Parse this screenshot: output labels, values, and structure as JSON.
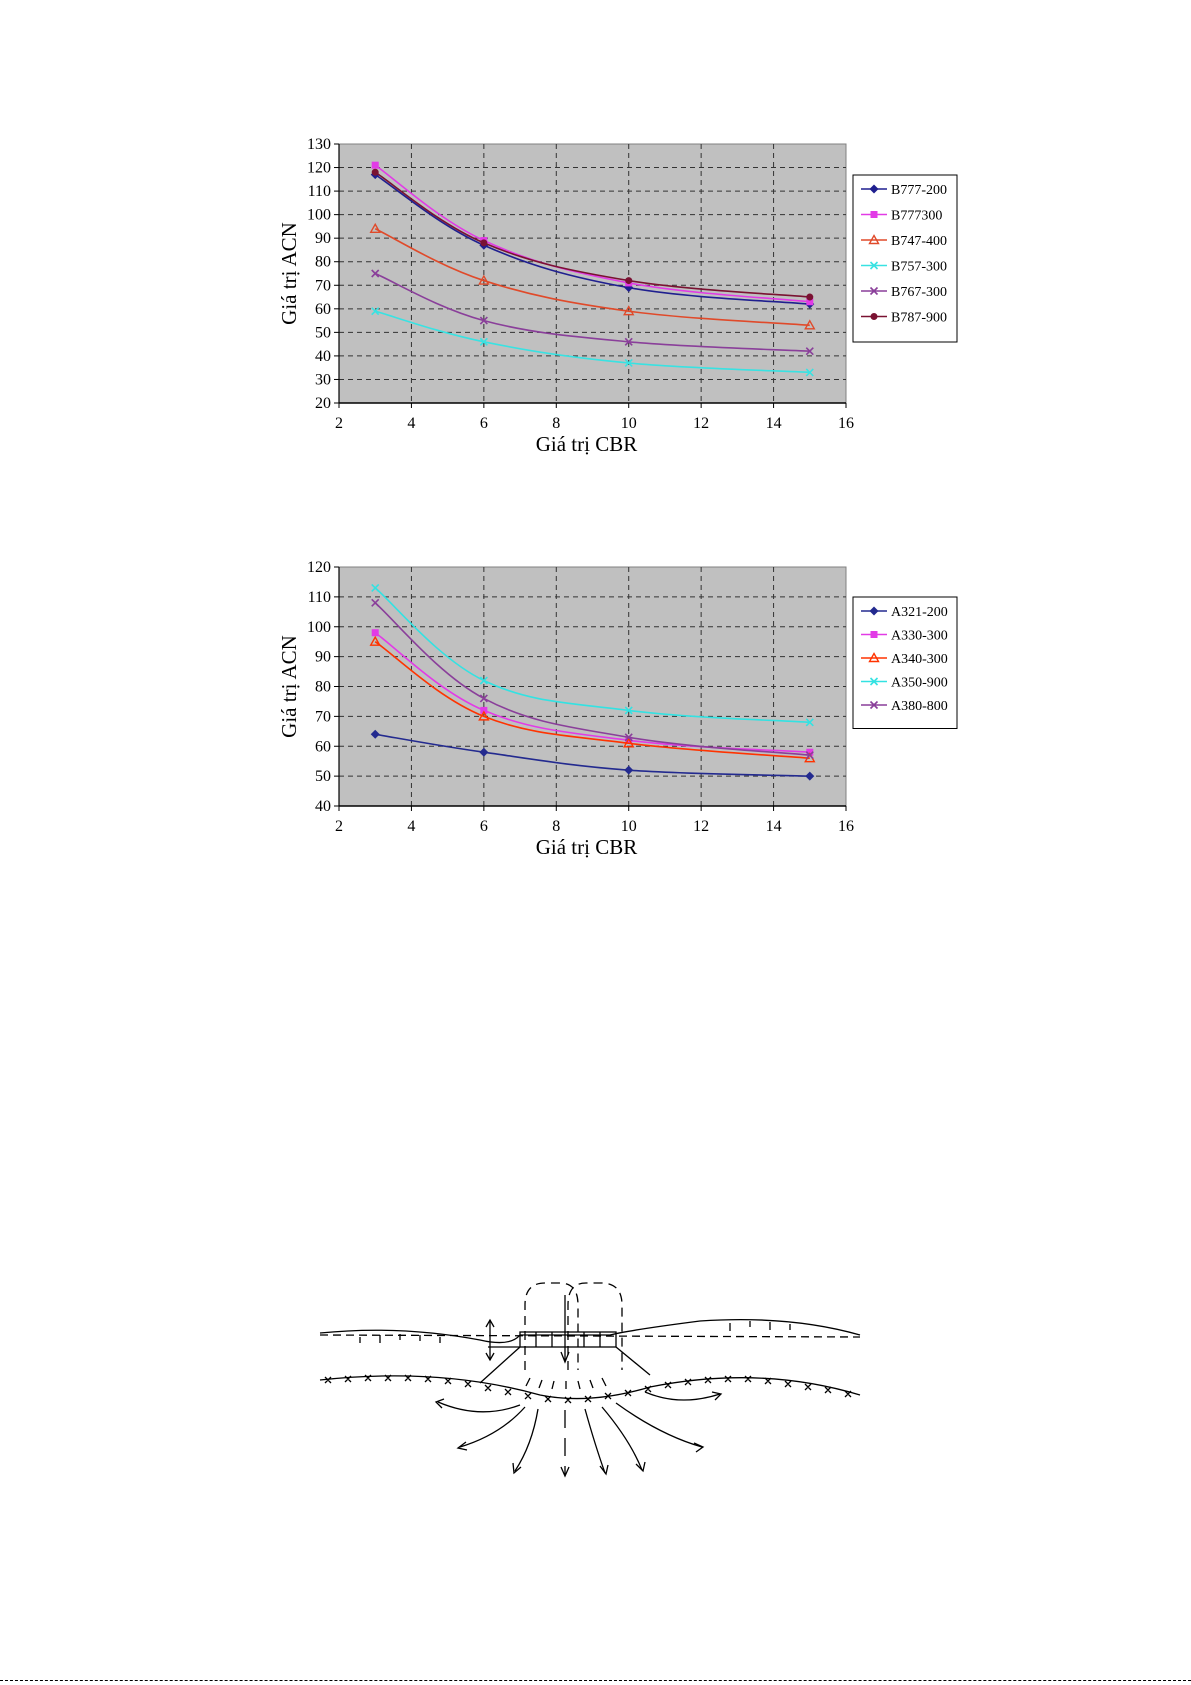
{
  "chart_data": [
    {
      "type": "line",
      "xlabel": "Giá trị CBR",
      "ylabel": "Giá trị ACN",
      "xlim": [
        2,
        16
      ],
      "ylim": [
        20,
        130
      ],
      "xticks": [
        2,
        4,
        6,
        8,
        10,
        12,
        14,
        16
      ],
      "yticks": [
        20,
        30,
        40,
        50,
        60,
        70,
        80,
        90,
        100,
        110,
        120,
        130
      ],
      "grid": true,
      "legend": "right",
      "x": [
        3,
        6,
        10,
        15
      ],
      "series": [
        {
          "name": "B777-200",
          "values": [
            117,
            87,
            69,
            62
          ],
          "color": "#1f1f8f",
          "marker": "diamond"
        },
        {
          "name": "B777300",
          "values": [
            121,
            89,
            71,
            63
          ],
          "color": "#e23be6",
          "marker": "square"
        },
        {
          "name": "B747-400",
          "values": [
            94,
            72,
            59,
            53
          ],
          "color": "#e04a2a",
          "marker": "triangle"
        },
        {
          "name": "B757-300",
          "values": [
            59,
            46,
            37,
            33
          ],
          "color": "#39e2e2",
          "marker": "x"
        },
        {
          "name": "B767-300",
          "values": [
            75,
            55,
            46,
            42
          ],
          "color": "#8a3f9a",
          "marker": "x"
        },
        {
          "name": "B787-900",
          "values": [
            118,
            88,
            72,
            65
          ],
          "color": "#7a1232",
          "marker": "circle"
        }
      ]
    },
    {
      "type": "line",
      "xlabel": "Giá trị CBR",
      "ylabel": "Giá trị ACN",
      "xlim": [
        2,
        16
      ],
      "ylim": [
        40,
        120
      ],
      "xticks": [
        2,
        4,
        6,
        8,
        10,
        12,
        14,
        16
      ],
      "yticks": [
        40,
        50,
        60,
        70,
        80,
        90,
        100,
        110,
        120
      ],
      "grid": true,
      "legend": "right",
      "x": [
        3,
        6,
        10,
        15
      ],
      "series": [
        {
          "name": "A321-200",
          "values": [
            64,
            58,
            52,
            50
          ],
          "color": "#232a8f",
          "marker": "diamond"
        },
        {
          "name": "A330-300",
          "values": [
            98,
            72,
            62,
            58
          ],
          "color": "#e23be6",
          "marker": "square"
        },
        {
          "name": "A340-300",
          "values": [
            95,
            70,
            61,
            56
          ],
          "color": "#ff3300",
          "marker": "triangle"
        },
        {
          "name": "A350-900",
          "values": [
            113,
            82,
            72,
            68
          ],
          "color": "#33e2e2",
          "marker": "x"
        },
        {
          "name": "A380-800",
          "values": [
            108,
            76,
            63,
            57
          ],
          "color": "#8a3f9a",
          "marker": "x"
        }
      ]
    }
  ],
  "colors": {
    "plot_background": "#c0c0c0",
    "grid": "#333333",
    "diagram_stroke": "#000000"
  }
}
